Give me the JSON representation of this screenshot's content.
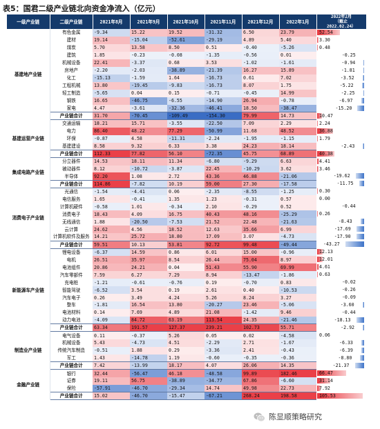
{
  "title": "表5：国君二级产业链北向资金净流入（亿元）",
  "headers": [
    "一级产业链",
    "二级产业链",
    "2021年8月",
    "2021年9月",
    "2021年10月",
    "2021年11月",
    "2021年12月",
    "2022年1月",
    "2022年2月\n（截止\n2022.02.24）"
  ],
  "colors": {
    "header_bg": "#143a6b",
    "positive": "#e8323a",
    "negative": "#2b62c0",
    "bar_pos": "#e8323a",
    "bar_neg": "#3d73c8"
  },
  "max_abs": 109.49,
  "bar_max": 105.53,
  "groups": [
    {
      "name": "基建地产业链",
      "rows": [
        {
          "name": "有色金属",
          "values": [
            -9.34,
            15.22,
            19.52,
            -31.32,
            6.5,
            23.79,
            52.54
          ]
        },
        {
          "name": "建材",
          "values": [
            19.14,
            -15.04,
            -52.61,
            -29.19,
            4.89,
            5.4,
            3.3
          ]
        },
        {
          "name": "煤炭",
          "values": [
            5.7,
            13.58,
            8.5,
            0.51,
            -0.4,
            -5.26,
            0.48
          ]
        },
        {
          "name": "建筑",
          "values": [
            1.85,
            -0.23,
            -0.08,
            -1.35,
            -0.56,
            0.01,
            -0.25
          ]
        },
        {
          "name": "机械设备",
          "values": [
            22.41,
            -3.37,
            0.68,
            3.53,
            -1.02,
            -1.61,
            -0.94
          ]
        },
        {
          "name": "房地产",
          "values": [
            -2.2,
            -2.03,
            -38.89,
            -21.39,
            16.27,
            15.89,
            -1.81
          ]
        },
        {
          "name": "化工",
          "values": [
            -15.13,
            -1.59,
            1.64,
            -16.73,
            0.61,
            7.02,
            -3.52
          ]
        },
        {
          "name": "工程机械",
          "values": [
            13.8,
            -19.45,
            -9.83,
            -16.73,
            8.07,
            1.75,
            -5.22
          ]
        },
        {
          "name": "轻工制造",
          "values": [
            -5.65,
            0.04,
            0.15,
            -0.71,
            -0.45,
            14.99,
            -2.25
          ]
        },
        {
          "name": "钢铁",
          "values": [
            16.65,
            -46.75,
            -6.55,
            -14.9,
            26.94,
            -0.78,
            -6.97
          ]
        },
        {
          "name": "家电",
          "values": [
            4.47,
            -3.61,
            -32.36,
            -46.41,
            18.5,
            -38.47,
            -15.2
          ]
        },
        {
          "name": "产业链合计",
          "values": [
            31.7,
            -70.45,
            -109.49,
            -154.3,
            79.99,
            14.73,
            10.47
          ],
          "total": true
        }
      ]
    },
    {
      "name": "基建运营产业链",
      "rows": [
        {
          "name": "交通运输",
          "values": [
            18.21,
            15.71,
            -3.55,
            -22.5,
            7.09,
            2.29,
            2.24
          ]
        },
        {
          "name": "电力",
          "values": [
            86.4,
            48.22,
            77.29,
            -50.99,
            11.68,
            48.52,
            36.88
          ]
        },
        {
          "name": "环保",
          "values": [
            -0.87,
            4.58,
            -11.31,
            -2.24,
            -1.95,
            -1.15,
            1.79
          ]
        },
        {
          "name": "基建建设",
          "values": [
            8.58,
            9.32,
            6.33,
            3.38,
            24.23,
            18.14,
            -2.43
          ]
        },
        {
          "name": "产业链合计",
          "values": [
            112.33,
            77.82,
            56.1,
            -72.35,
            45.75,
            68.89,
            40.38
          ],
          "total": true
        }
      ]
    },
    {
      "name": "集成电路产业链",
      "rows": [
        {
          "name": "分立器件",
          "values": [
            14.53,
            18.11,
            11.34,
            -6.8,
            -9.29,
            6.63,
            4.41
          ]
        },
        {
          "name": "被动器件",
          "values": [
            8.12,
            -10.72,
            -3.87,
            22.45,
            -10.29,
            3.62,
            3.46
          ]
        },
        {
          "name": "半导体",
          "values": [
            92.2,
            1.08,
            2.72,
            43.36,
            46.88,
            -21.06,
            -19.62
          ]
        },
        {
          "name": "产业链合计",
          "values": [
            114.86,
            -7.82,
            10.19,
            59.0,
            27.3,
            -17.58,
            -11.75
          ],
          "total": true
        }
      ]
    },
    {
      "name": "消费电子产业链",
      "rows": [
        {
          "name": "光通信",
          "values": [
            -1.54,
            -4.41,
            0.06,
            -2.35,
            -8.55,
            -1.25,
            0.3
          ]
        },
        {
          "name": "电信服务",
          "values": [
            1.65,
            -0.41,
            1.35,
            1.23,
            -0.31,
            0.57,
            0.0
          ]
        },
        {
          "name": "计算机硬件",
          "values": [
            -0.58,
            1.01,
            -0.34,
            2.1,
            -0.29,
            0.52,
            -0.44
          ]
        },
        {
          "name": "消费电子",
          "values": [
            18.43,
            4.09,
            16.75,
            40.43,
            48.16,
            -25.29,
            0.26
          ]
        },
        {
          "name": "无线通信",
          "values": [
            1.88,
            -20.5,
            -7.53,
            21.52,
            22.48,
            -21.63,
            -8.43
          ]
        },
        {
          "name": "云计算",
          "values": [
            24.62,
            4.56,
            18.52,
            12.63,
            35.66,
            6.99,
            -17.69
          ]
        },
        {
          "name": "计算机软件及服务",
          "values": [
            14.21,
            25.72,
            18.8,
            17.09,
            3.07,
            -4.73,
            -17.9
          ]
        },
        {
          "name": "产业链合计",
          "values": [
            59.51,
            10.13,
            53.81,
            92.72,
            99.48,
            -49.44,
            -43.27
          ],
          "total": true
        }
      ]
    },
    {
      "name": "新能源车产业链",
      "rows": [
        {
          "name": "锂电设备",
          "values": [
            -6.37,
            14.59,
            0.86,
            6.01,
            15.0,
            -0.96,
            12.13
          ]
        },
        {
          "name": "电机",
          "values": [
            26.51,
            35.97,
            8.54,
            26.44,
            75.04,
            8.97,
            12.01
          ]
        },
        {
          "name": "电池组件",
          "values": [
            20.86,
            24.21,
            0.04,
            51.43,
            55.9,
            69.99,
            4.61
          ]
        },
        {
          "name": "汽车零部件",
          "values": [
            7.59,
            6.27,
            7.29,
            8.94,
            -13.47,
            -1.86,
            0.63
          ]
        },
        {
          "name": "充电桩",
          "values": [
            -1.21,
            -0.61,
            -0.76,
            0.19,
            -0.7,
            0.83,
            -0.02
          ]
        },
        {
          "name": "智能驾驶",
          "values": [
            -6.52,
            3.54,
            0.19,
            2.61,
            0.4,
            -10.53,
            -0.26
          ]
        },
        {
          "name": "汽车电子",
          "values": [
            0.26,
            3.49,
            4.24,
            5.26,
            8.24,
            3.27,
            -0.09
          ]
        },
        {
          "name": "整车",
          "values": [
            -1.81,
            16.54,
            13.8,
            -20.27,
            23.46,
            -5.06,
            -3.6
          ]
        },
        {
          "name": "电池材料",
          "values": [
            0.14,
            7.69,
            4.89,
            21.08,
            -1.42,
            9.46,
            -0.44
          ]
        },
        {
          "name": "动力电池",
          "values": [
            -4.09,
            84.72,
            63.19,
            113.54,
            24.35,
            -21.46,
            -18.13
          ]
        },
        {
          "name": "产业链合计",
          "values": [
            63.34,
            191.57,
            127.37,
            239.21,
            102.73,
            55.71,
            -2.92
          ],
          "total": true
        }
      ]
    },
    {
      "name": "制造业产业链",
      "rows": [
        {
          "name": "电气设备",
          "values": [
            0.11,
            -0.37,
            5.26,
            0.05,
            0.02,
            -4.58,
            0.06
          ]
        },
        {
          "name": "机械设备",
          "values": [
            5.43,
            -4.73,
            4.51,
            -2.29,
            2.71,
            -1.67,
            -6.33
          ]
        },
        {
          "name": "传统汽车制造",
          "values": [
            -0.51,
            1.88,
            0.29,
            -3.36,
            2.41,
            -0.43,
            -6.39
          ]
        },
        {
          "name": "军工",
          "values": [
            1.43,
            -14.78,
            1.19,
            -0.6,
            -0.35,
            -0.36,
            -8.8
          ]
        },
        {
          "name": "产业链合计",
          "values": [
            7.42,
            -13.99,
            18.17,
            4.07,
            26.06,
            14.35,
            -21.37
          ],
          "total": true
        }
      ]
    },
    {
      "name": "金融产业链",
      "rows": [
        {
          "name": "银行",
          "values": [
            32.44,
            -56.47,
            46.18,
            -48.58,
            99.89,
            182.46,
            66.47
          ]
        },
        {
          "name": "证券",
          "values": [
            19.11,
            56.75,
            -38.89,
            -34.77,
            67.86,
            -6.6,
            31.14
          ]
        },
        {
          "name": "保险",
          "values": [
            -57.91,
            -46.7,
            -29.34,
            14.74,
            49.98,
            22.73,
            7.92
          ]
        },
        {
          "name": "产业链合计",
          "values": [
            15.02,
            -46.7,
            -15.47,
            -67.21,
            268.24,
            198.58,
            105.53
          ],
          "total": true
        }
      ]
    }
  ],
  "watermark": "陈显顺策略研究"
}
